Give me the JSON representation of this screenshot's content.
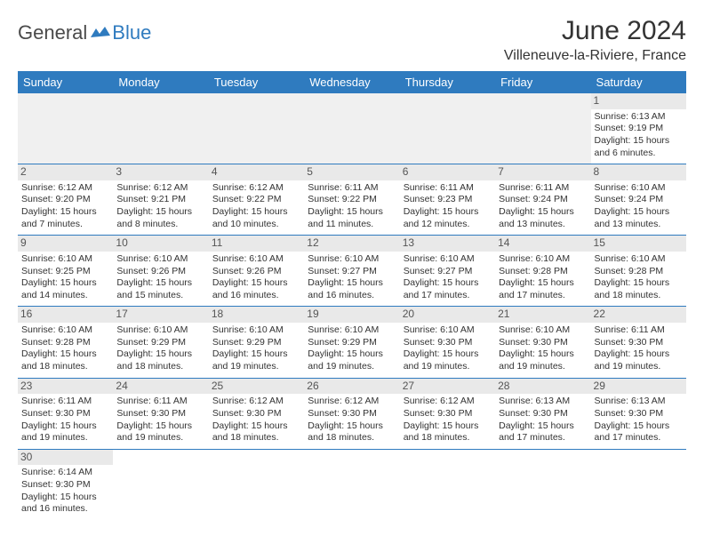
{
  "logo": {
    "part1": "General",
    "part2": "Blue"
  },
  "title": "June 2024",
  "location": "Villeneuve-la-Riviere, France",
  "colors": {
    "header_bg": "#2f7bbf",
    "header_fg": "#ffffff",
    "row_border": "#2f7bbf",
    "daynum_bg": "#e9e9e9",
    "empty_bg": "#f0f0f0"
  },
  "weekdays": [
    "Sunday",
    "Monday",
    "Tuesday",
    "Wednesday",
    "Thursday",
    "Friday",
    "Saturday"
  ],
  "weeks": [
    [
      null,
      null,
      null,
      null,
      null,
      null,
      {
        "n": "1",
        "sr": "Sunrise: 6:13 AM",
        "ss": "Sunset: 9:19 PM",
        "d1": "Daylight: 15 hours",
        "d2": "and 6 minutes."
      }
    ],
    [
      {
        "n": "2",
        "sr": "Sunrise: 6:12 AM",
        "ss": "Sunset: 9:20 PM",
        "d1": "Daylight: 15 hours",
        "d2": "and 7 minutes."
      },
      {
        "n": "3",
        "sr": "Sunrise: 6:12 AM",
        "ss": "Sunset: 9:21 PM",
        "d1": "Daylight: 15 hours",
        "d2": "and 8 minutes."
      },
      {
        "n": "4",
        "sr": "Sunrise: 6:12 AM",
        "ss": "Sunset: 9:22 PM",
        "d1": "Daylight: 15 hours",
        "d2": "and 10 minutes."
      },
      {
        "n": "5",
        "sr": "Sunrise: 6:11 AM",
        "ss": "Sunset: 9:22 PM",
        "d1": "Daylight: 15 hours",
        "d2": "and 11 minutes."
      },
      {
        "n": "6",
        "sr": "Sunrise: 6:11 AM",
        "ss": "Sunset: 9:23 PM",
        "d1": "Daylight: 15 hours",
        "d2": "and 12 minutes."
      },
      {
        "n": "7",
        "sr": "Sunrise: 6:11 AM",
        "ss": "Sunset: 9:24 PM",
        "d1": "Daylight: 15 hours",
        "d2": "and 13 minutes."
      },
      {
        "n": "8",
        "sr": "Sunrise: 6:10 AM",
        "ss": "Sunset: 9:24 PM",
        "d1": "Daylight: 15 hours",
        "d2": "and 13 minutes."
      }
    ],
    [
      {
        "n": "9",
        "sr": "Sunrise: 6:10 AM",
        "ss": "Sunset: 9:25 PM",
        "d1": "Daylight: 15 hours",
        "d2": "and 14 minutes."
      },
      {
        "n": "10",
        "sr": "Sunrise: 6:10 AM",
        "ss": "Sunset: 9:26 PM",
        "d1": "Daylight: 15 hours",
        "d2": "and 15 minutes."
      },
      {
        "n": "11",
        "sr": "Sunrise: 6:10 AM",
        "ss": "Sunset: 9:26 PM",
        "d1": "Daylight: 15 hours",
        "d2": "and 16 minutes."
      },
      {
        "n": "12",
        "sr": "Sunrise: 6:10 AM",
        "ss": "Sunset: 9:27 PM",
        "d1": "Daylight: 15 hours",
        "d2": "and 16 minutes."
      },
      {
        "n": "13",
        "sr": "Sunrise: 6:10 AM",
        "ss": "Sunset: 9:27 PM",
        "d1": "Daylight: 15 hours",
        "d2": "and 17 minutes."
      },
      {
        "n": "14",
        "sr": "Sunrise: 6:10 AM",
        "ss": "Sunset: 9:28 PM",
        "d1": "Daylight: 15 hours",
        "d2": "and 17 minutes."
      },
      {
        "n": "15",
        "sr": "Sunrise: 6:10 AM",
        "ss": "Sunset: 9:28 PM",
        "d1": "Daylight: 15 hours",
        "d2": "and 18 minutes."
      }
    ],
    [
      {
        "n": "16",
        "sr": "Sunrise: 6:10 AM",
        "ss": "Sunset: 9:28 PM",
        "d1": "Daylight: 15 hours",
        "d2": "and 18 minutes."
      },
      {
        "n": "17",
        "sr": "Sunrise: 6:10 AM",
        "ss": "Sunset: 9:29 PM",
        "d1": "Daylight: 15 hours",
        "d2": "and 18 minutes."
      },
      {
        "n": "18",
        "sr": "Sunrise: 6:10 AM",
        "ss": "Sunset: 9:29 PM",
        "d1": "Daylight: 15 hours",
        "d2": "and 19 minutes."
      },
      {
        "n": "19",
        "sr": "Sunrise: 6:10 AM",
        "ss": "Sunset: 9:29 PM",
        "d1": "Daylight: 15 hours",
        "d2": "and 19 minutes."
      },
      {
        "n": "20",
        "sr": "Sunrise: 6:10 AM",
        "ss": "Sunset: 9:30 PM",
        "d1": "Daylight: 15 hours",
        "d2": "and 19 minutes."
      },
      {
        "n": "21",
        "sr": "Sunrise: 6:10 AM",
        "ss": "Sunset: 9:30 PM",
        "d1": "Daylight: 15 hours",
        "d2": "and 19 minutes."
      },
      {
        "n": "22",
        "sr": "Sunrise: 6:11 AM",
        "ss": "Sunset: 9:30 PM",
        "d1": "Daylight: 15 hours",
        "d2": "and 19 minutes."
      }
    ],
    [
      {
        "n": "23",
        "sr": "Sunrise: 6:11 AM",
        "ss": "Sunset: 9:30 PM",
        "d1": "Daylight: 15 hours",
        "d2": "and 19 minutes."
      },
      {
        "n": "24",
        "sr": "Sunrise: 6:11 AM",
        "ss": "Sunset: 9:30 PM",
        "d1": "Daylight: 15 hours",
        "d2": "and 19 minutes."
      },
      {
        "n": "25",
        "sr": "Sunrise: 6:12 AM",
        "ss": "Sunset: 9:30 PM",
        "d1": "Daylight: 15 hours",
        "d2": "and 18 minutes."
      },
      {
        "n": "26",
        "sr": "Sunrise: 6:12 AM",
        "ss": "Sunset: 9:30 PM",
        "d1": "Daylight: 15 hours",
        "d2": "and 18 minutes."
      },
      {
        "n": "27",
        "sr": "Sunrise: 6:12 AM",
        "ss": "Sunset: 9:30 PM",
        "d1": "Daylight: 15 hours",
        "d2": "and 18 minutes."
      },
      {
        "n": "28",
        "sr": "Sunrise: 6:13 AM",
        "ss": "Sunset: 9:30 PM",
        "d1": "Daylight: 15 hours",
        "d2": "and 17 minutes."
      },
      {
        "n": "29",
        "sr": "Sunrise: 6:13 AM",
        "ss": "Sunset: 9:30 PM",
        "d1": "Daylight: 15 hours",
        "d2": "and 17 minutes."
      }
    ],
    [
      {
        "n": "30",
        "sr": "Sunrise: 6:14 AM",
        "ss": "Sunset: 9:30 PM",
        "d1": "Daylight: 15 hours",
        "d2": "and 16 minutes."
      },
      null,
      null,
      null,
      null,
      null,
      null
    ]
  ]
}
